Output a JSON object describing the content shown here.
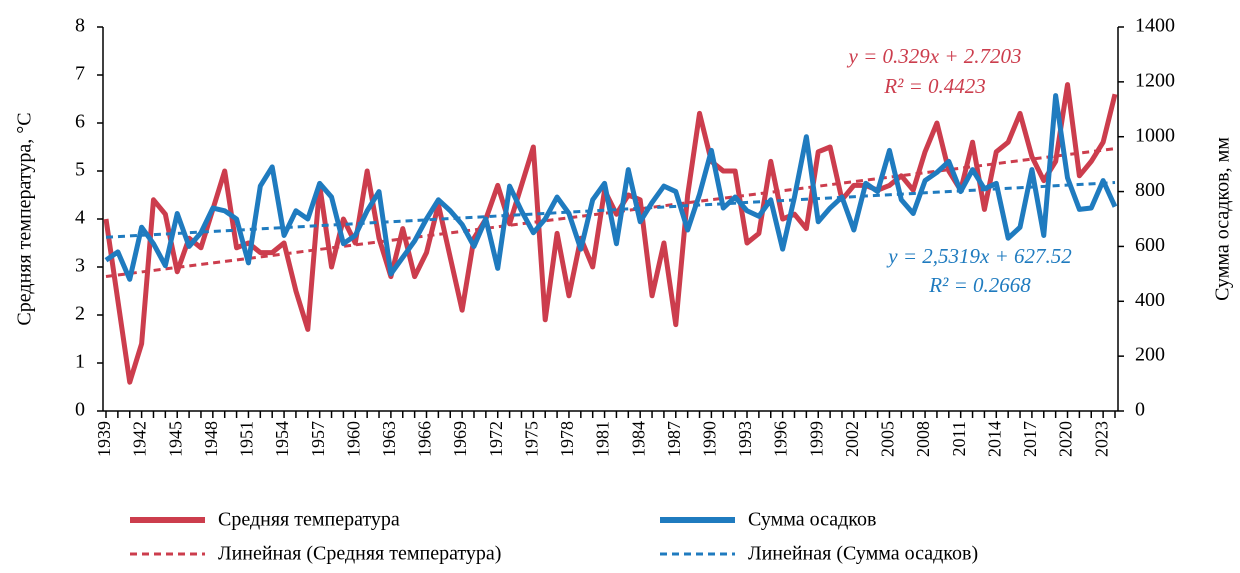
{
  "chart_data": {
    "type": "line",
    "ylabel": "Средняя температура, °С",
    "y2label": "Сумма осадков, мм",
    "categories": [
      "1939",
      null,
      null,
      "1942",
      null,
      null,
      "1945",
      null,
      null,
      "1948",
      null,
      null,
      "1951",
      null,
      null,
      "1954",
      null,
      null,
      "1957",
      null,
      null,
      "1960",
      null,
      null,
      "1963",
      null,
      null,
      "1966",
      null,
      null,
      "1969",
      null,
      null,
      "1972",
      null,
      null,
      "1975",
      null,
      null,
      "1978",
      null,
      null,
      "1981",
      null,
      null,
      "1984",
      null,
      null,
      "1987",
      null,
      null,
      "1990",
      null,
      null,
      "1993",
      null,
      null,
      "1996",
      null,
      null,
      "1999",
      null,
      null,
      "2002",
      null,
      null,
      "2005",
      null,
      null,
      "2008",
      null,
      null,
      "2011",
      null,
      null,
      "2014",
      null,
      null,
      "2017",
      null,
      null,
      "2020",
      null,
      null,
      "2023",
      null
    ],
    "ylim": [
      0,
      8
    ],
    "yticks": [
      0,
      1,
      2,
      3,
      4,
      5,
      6,
      7,
      8
    ],
    "y2lim": [
      0,
      1400
    ],
    "y2ticks": [
      0,
      200,
      400,
      600,
      800,
      1000,
      1200,
      1400
    ],
    "series": [
      {
        "name": "Средняя температура",
        "color": "#cc3d4d",
        "axis": "y",
        "values": [
          4.0,
          2.3,
          0.6,
          1.4,
          4.4,
          4.1,
          2.9,
          3.6,
          3.4,
          4.2,
          5.0,
          3.4,
          3.5,
          3.3,
          3.3,
          3.5,
          2.5,
          1.7,
          4.7,
          3.0,
          4.0,
          3.5,
          5.0,
          3.6,
          2.8,
          3.8,
          2.8,
          3.3,
          4.3,
          3.2,
          2.1,
          3.6,
          4.0,
          4.7,
          3.9,
          4.7,
          5.5,
          1.9,
          3.7,
          2.4,
          3.6,
          3.0,
          4.6,
          4.1,
          4.5,
          4.4,
          2.4,
          3.5,
          1.8,
          4.5,
          6.2,
          5.2,
          5.0,
          5.0,
          3.5,
          3.7,
          5.2,
          4.0,
          4.1,
          3.8,
          5.4,
          5.5,
          4.4,
          4.7,
          4.7,
          4.6,
          4.7,
          4.9,
          4.6,
          5.4,
          6.0,
          5.0,
          4.6,
          5.6,
          4.2,
          5.4,
          5.6,
          6.2,
          5.3,
          4.8,
          5.2,
          6.8,
          4.9,
          5.2,
          5.6,
          6.6
        ],
        "trendline": {
          "name": "Линейная (Средняя температура)",
          "equation": "y = 0.329x + 2.7203",
          "r2": "R² = 0.4423"
        }
      },
      {
        "name": "Сумма осадков",
        "color": "#1f7bbf",
        "axis": "y2",
        "values": [
          550,
          580,
          480,
          670,
          610,
          530,
          720,
          600,
          650,
          740,
          730,
          700,
          540,
          820,
          890,
          640,
          730,
          700,
          830,
          780,
          610,
          640,
          730,
          800,
          500,
          560,
          620,
          700,
          770,
          730,
          680,
          600,
          700,
          520,
          820,
          730,
          650,
          700,
          780,
          720,
          590,
          770,
          830,
          610,
          880,
          690,
          760,
          820,
          800,
          660,
          790,
          950,
          740,
          780,
          730,
          710,
          770,
          590,
          780,
          1000,
          690,
          740,
          780,
          660,
          830,
          800,
          950,
          770,
          720,
          840,
          870,
          910,
          800,
          880,
          810,
          830,
          630,
          670,
          880,
          640,
          1150,
          850,
          735,
          740,
          840,
          745
        ],
        "trendline": {
          "name": "Линейная (Сумма осадков)",
          "equation": "y = 2,5319x + 627.52",
          "r2": "R² = 0.2668"
        }
      }
    ]
  }
}
